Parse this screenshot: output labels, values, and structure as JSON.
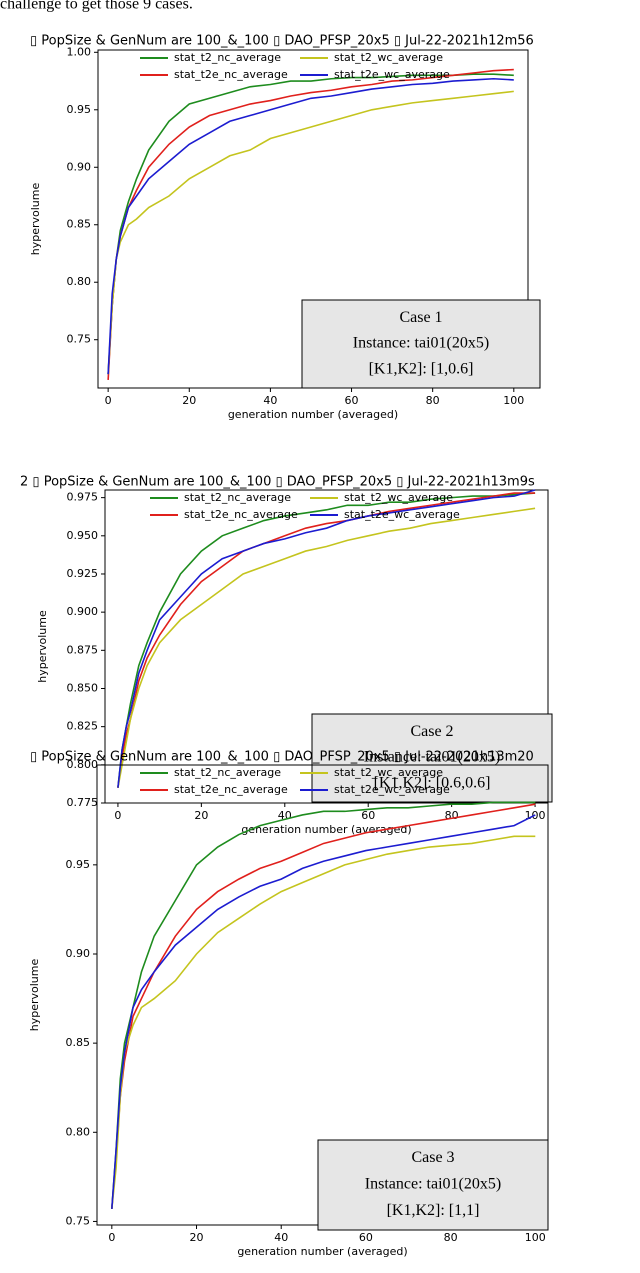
{
  "caption_fragment": "challenge to get those 9 cases.",
  "chart_data": [
    {
      "type": "line",
      "title": "▯ PopSize & GenNum are 100_&_100 ▯ DAO_PFSP_20x5 ▯ Jul-22-2021h12m56",
      "xlabel": "generation number (averaged)",
      "ylabel": "hypervolume",
      "x": [
        0,
        1,
        2,
        3,
        5,
        7,
        10,
        15,
        20,
        25,
        30,
        35,
        40,
        45,
        50,
        55,
        60,
        65,
        70,
        75,
        80,
        85,
        90,
        95,
        100
      ],
      "xlim": [
        -2.5,
        103.5
      ],
      "xticks": [
        0,
        20,
        40,
        60,
        80,
        100
      ],
      "ylim": [
        0.708,
        1.002
      ],
      "yticks": [
        0.75,
        {
          "value": 0.8,
          "label": "0.80"
        },
        0.85,
        {
          "value": 0.9,
          "label": "0.90"
        },
        0.95,
        {
          "value": 1,
          "label": "1.00"
        }
      ],
      "series": [
        {
          "name": "stat_t2_nc_average",
          "color": "#1e8c1e",
          "values": [
            0.72,
            0.78,
            0.82,
            0.845,
            0.87,
            0.89,
            0.915,
            0.94,
            0.955,
            0.96,
            0.965,
            0.97,
            0.972,
            0.975,
            0.975,
            0.977,
            0.978,
            0.978,
            0.979,
            0.98,
            0.98,
            0.98,
            0.981,
            0.981,
            0.98
          ]
        },
        {
          "name": "stat_t2e_nc_average",
          "color": "#e0201c",
          "values": [
            0.715,
            0.78,
            0.82,
            0.84,
            0.865,
            0.88,
            0.9,
            0.92,
            0.935,
            0.945,
            0.95,
            0.955,
            0.958,
            0.962,
            0.965,
            0.967,
            0.97,
            0.972,
            0.975,
            0.976,
            0.978,
            0.98,
            0.982,
            0.984,
            0.985
          ]
        },
        {
          "name": "stat_t2_wc_average",
          "color": "#c4c41e",
          "values": [
            0.72,
            0.78,
            0.82,
            0.835,
            0.85,
            0.855,
            0.865,
            0.875,
            0.89,
            0.9,
            0.91,
            0.915,
            0.925,
            0.93,
            0.935,
            0.94,
            0.945,
            0.95,
            0.953,
            0.956,
            0.958,
            0.96,
            0.962,
            0.964,
            0.966
          ]
        },
        {
          "name": "stat_t2e_wc_average",
          "color": "#1c1cd0",
          "values": [
            0.72,
            0.79,
            0.82,
            0.84,
            0.865,
            0.875,
            0.89,
            0.905,
            0.92,
            0.93,
            0.94,
            0.945,
            0.95,
            0.955,
            0.96,
            0.962,
            0.965,
            0.968,
            0.97,
            0.972,
            0.973,
            0.975,
            0.976,
            0.977,
            0.976
          ]
        }
      ],
      "annotation": [
        "Case 1",
        "Instance:  tai01(20x5)",
        "[K1,K2]:  [1,0.6]"
      ]
    },
    {
      "type": "line",
      "title": "2 ▯ PopSize & GenNum are 100_&_100 ▯ DAO_PFSP_20x5 ▯ Jul-22-2021h13m9s",
      "xlabel": "generation number (averaged)",
      "ylabel": "hypervolume",
      "x": [
        0,
        1,
        2,
        3,
        5,
        7,
        10,
        15,
        20,
        25,
        30,
        35,
        40,
        45,
        50,
        55,
        60,
        65,
        70,
        75,
        80,
        85,
        90,
        95,
        100
      ],
      "xlim": [
        -3.1,
        103.1
      ],
      "xticks": [
        0,
        20,
        40,
        60,
        80,
        100
      ],
      "ylim": [
        0.775,
        0.98
      ],
      "yticks": [
        0.775,
        {
          "value": 0.8,
          "label": "0.800"
        },
        0.825,
        {
          "value": 0.85,
          "label": "0.850"
        },
        0.875,
        {
          "value": 0.9,
          "label": "0.900"
        },
        0.925,
        {
          "value": 0.95,
          "label": "0.950"
        },
        0.975
      ],
      "series": [
        {
          "name": "stat_t2_nc_average",
          "color": "#1e8c1e",
          "values": [
            0.785,
            0.81,
            0.825,
            0.84,
            0.865,
            0.88,
            0.9,
            0.925,
            0.94,
            0.95,
            0.955,
            0.96,
            0.963,
            0.965,
            0.967,
            0.97,
            0.97,
            0.972,
            0.972,
            0.974,
            0.975,
            0.976,
            0.976,
            0.977,
            0.978
          ]
        },
        {
          "name": "stat_t2e_nc_average",
          "color": "#e0201c",
          "values": [
            0.785,
            0.805,
            0.82,
            0.83,
            0.855,
            0.87,
            0.885,
            0.905,
            0.92,
            0.93,
            0.94,
            0.945,
            0.95,
            0.955,
            0.958,
            0.96,
            0.963,
            0.966,
            0.968,
            0.97,
            0.972,
            0.974,
            0.976,
            0.978,
            0.978
          ]
        },
        {
          "name": "stat_t2_wc_average",
          "color": "#c4c41e",
          "values": [
            0.785,
            0.8,
            0.815,
            0.83,
            0.85,
            0.865,
            0.88,
            0.895,
            0.905,
            0.915,
            0.925,
            0.93,
            0.935,
            0.94,
            0.943,
            0.947,
            0.95,
            0.953,
            0.955,
            0.958,
            0.96,
            0.962,
            0.964,
            0.966,
            0.968
          ]
        },
        {
          "name": "stat_t2e_wc_average",
          "color": "#1c1cd0",
          "values": [
            0.785,
            0.81,
            0.825,
            0.835,
            0.86,
            0.875,
            0.895,
            0.91,
            0.925,
            0.935,
            0.94,
            0.945,
            0.948,
            0.952,
            0.955,
            0.96,
            0.963,
            0.965,
            0.967,
            0.969,
            0.971,
            0.973,
            0.975,
            0.976,
            0.98
          ]
        }
      ],
      "annotation": [
        "Case 2",
        "Instance:  tai01(20x5)",
        "[K1,K2]:  [0.6,0.6]"
      ]
    },
    {
      "type": "line",
      "title": "▯ PopSize & GenNum are 100_&_100 ▯ DAO_PFSP_20x5 ▯ Jul-22-2021h13m20",
      "xlabel": "generation number (averaged)",
      "ylabel": "hypervolume",
      "x": [
        0,
        1,
        2,
        3,
        5,
        7,
        10,
        15,
        20,
        25,
        30,
        35,
        40,
        45,
        50,
        55,
        60,
        65,
        70,
        75,
        80,
        85,
        90,
        95,
        100
      ],
      "xlim": [
        -3.5,
        103
      ],
      "xticks": [
        0,
        20,
        40,
        60,
        80,
        100
      ],
      "ylim": [
        0.748,
        1.006
      ],
      "yticks": [
        0.75,
        {
          "value": 0.8,
          "label": "0.80"
        },
        0.85,
        {
          "value": 0.9,
          "label": "0.90"
        },
        0.95
      ],
      "series": [
        {
          "name": "stat_t2_nc_average",
          "color": "#1e8c1e",
          "values": [
            0.757,
            0.79,
            0.83,
            0.85,
            0.87,
            0.89,
            0.91,
            0.93,
            0.95,
            0.96,
            0.967,
            0.972,
            0.975,
            0.978,
            0.98,
            0.98,
            0.981,
            0.982,
            0.982,
            0.983,
            0.984,
            0.984,
            0.985,
            0.985,
            0.985
          ]
        },
        {
          "name": "stat_t2e_nc_average",
          "color": "#e0201c",
          "values": [
            0.757,
            0.785,
            0.82,
            0.84,
            0.865,
            0.875,
            0.89,
            0.91,
            0.925,
            0.935,
            0.942,
            0.948,
            0.952,
            0.957,
            0.962,
            0.965,
            0.968,
            0.97,
            0.972,
            0.974,
            0.976,
            0.978,
            0.98,
            0.982,
            0.984
          ]
        },
        {
          "name": "stat_t2_wc_average",
          "color": "#c4c41e",
          "values": [
            0.757,
            0.78,
            0.82,
            0.845,
            0.86,
            0.87,
            0.875,
            0.885,
            0.9,
            0.912,
            0.92,
            0.928,
            0.935,
            0.94,
            0.945,
            0.95,
            0.953,
            0.956,
            0.958,
            0.96,
            0.961,
            0.962,
            0.964,
            0.966,
            0.966
          ]
        },
        {
          "name": "stat_t2e_wc_average",
          "color": "#1c1cd0",
          "values": [
            0.757,
            0.79,
            0.825,
            0.845,
            0.87,
            0.88,
            0.89,
            0.905,
            0.915,
            0.925,
            0.932,
            0.938,
            0.942,
            0.948,
            0.952,
            0.955,
            0.958,
            0.96,
            0.962,
            0.964,
            0.966,
            0.968,
            0.97,
            0.972,
            0.978
          ]
        }
      ],
      "annotation": [
        "Case 3",
        "Instance:  tai01(20x5)",
        "[K1,K2]:  [1,1]"
      ]
    }
  ]
}
